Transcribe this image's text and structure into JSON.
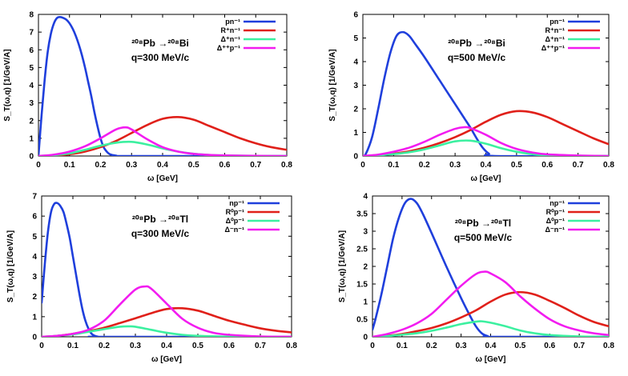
{
  "colors": {
    "blue": "#1f3fdc",
    "red": "#e0201a",
    "green": "#3cf0a0",
    "magenta": "#f21cf0"
  },
  "chart_data": [
    {
      "type": "line",
      "xlabel": "ω [GeV]",
      "ylabel": "S_T(ω,q) [1/GeV/A]",
      "xlim": [
        0,
        0.8
      ],
      "ylim": [
        0,
        8
      ],
      "xticks": [
        "0",
        "0.1",
        "0.2",
        "0.3",
        "0.4",
        "0.5",
        "0.6",
        "0.7",
        "0.8"
      ],
      "yticks": [
        "0",
        "1",
        "2",
        "3",
        "4",
        "5",
        "6",
        "7",
        "8"
      ],
      "annotation": [
        "²⁰⁸Pb →²⁰⁸Bi",
        "q=300 MeV/c"
      ],
      "legend_position": "top-right",
      "series": [
        {
          "name": "pn⁻¹",
          "color": "#1f3fdc",
          "x": [
            0,
            0.01,
            0.02,
            0.03,
            0.04,
            0.05,
            0.06,
            0.07,
            0.08,
            0.09,
            0.1,
            0.11,
            0.12,
            0.13,
            0.14,
            0.15,
            0.16,
            0.17,
            0.18,
            0.19,
            0.2,
            0.21,
            0.22,
            0.23,
            0.25,
            0.3,
            0.8
          ],
          "y": [
            0,
            2.3,
            4.3,
            5.9,
            6.9,
            7.5,
            7.8,
            7.85,
            7.8,
            7.7,
            7.5,
            7.2,
            6.8,
            6.3,
            5.7,
            5.0,
            4.2,
            3.4,
            2.5,
            1.7,
            1.0,
            0.5,
            0.25,
            0.1,
            0.02,
            0,
            0
          ]
        },
        {
          "name": "R⁺n⁻¹",
          "color": "#e0201a",
          "x": [
            0,
            0.05,
            0.1,
            0.15,
            0.2,
            0.25,
            0.3,
            0.35,
            0.4,
            0.45,
            0.5,
            0.55,
            0.6,
            0.65,
            0.7,
            0.75,
            0.8
          ],
          "y": [
            0,
            0.03,
            0.1,
            0.25,
            0.5,
            0.85,
            1.3,
            1.75,
            2.1,
            2.2,
            2.05,
            1.7,
            1.35,
            1.0,
            0.72,
            0.5,
            0.35
          ]
        },
        {
          "name": "Δ⁺n⁻¹",
          "color": "#3cf0a0",
          "x": [
            0,
            0.05,
            0.1,
            0.15,
            0.2,
            0.25,
            0.3,
            0.35,
            0.4,
            0.45,
            0.5,
            0.55,
            0.6,
            0.7,
            0.8
          ],
          "y": [
            0,
            0.05,
            0.15,
            0.35,
            0.58,
            0.75,
            0.8,
            0.65,
            0.43,
            0.25,
            0.13,
            0.06,
            0.03,
            0.01,
            0
          ]
        },
        {
          "name": "Δ⁺⁺p⁻¹",
          "color": "#f21cf0",
          "x": [
            0,
            0.05,
            0.1,
            0.15,
            0.2,
            0.25,
            0.28,
            0.3,
            0.35,
            0.4,
            0.45,
            0.5,
            0.55,
            0.6,
            0.7,
            0.8
          ],
          "y": [
            0,
            0.08,
            0.25,
            0.55,
            1.0,
            1.5,
            1.62,
            1.5,
            0.95,
            0.5,
            0.25,
            0.12,
            0.06,
            0.03,
            0.01,
            0
          ]
        }
      ]
    },
    {
      "type": "line",
      "xlabel": "ω [GeV]",
      "ylabel": "S_T(ω,q) [1/GeV/A]",
      "xlim": [
        0,
        0.8
      ],
      "ylim": [
        0,
        6
      ],
      "xticks": [
        "0",
        "0.1",
        "0.2",
        "0.3",
        "0.4",
        "0.5",
        "0.6",
        "0.7",
        "0.8"
      ],
      "yticks": [
        "0",
        "1",
        "2",
        "3",
        "4",
        "5",
        "6"
      ],
      "annotation": [
        "²⁰⁸Pb →²⁰⁸Bi",
        "q=500 MeV/c"
      ],
      "legend_position": "top-right",
      "series": [
        {
          "name": "pn⁻¹",
          "color": "#1f3fdc",
          "x": [
            0,
            0.01,
            0.03,
            0.05,
            0.07,
            0.09,
            0.11,
            0.13,
            0.15,
            0.17,
            0.2,
            0.25,
            0.3,
            0.33,
            0.35,
            0.37,
            0.39,
            0.41,
            0.43,
            0.8
          ],
          "y": [
            0,
            0.1,
            0.8,
            2.0,
            3.3,
            4.4,
            5.1,
            5.25,
            5.1,
            4.75,
            4.2,
            3.2,
            2.2,
            1.6,
            1.2,
            0.75,
            0.35,
            0.1,
            0,
            0
          ]
        },
        {
          "name": "R⁺n⁻¹",
          "color": "#e0201a",
          "x": [
            0,
            0.05,
            0.1,
            0.15,
            0.2,
            0.25,
            0.3,
            0.35,
            0.4,
            0.45,
            0.5,
            0.55,
            0.6,
            0.65,
            0.7,
            0.75,
            0.8
          ],
          "y": [
            0,
            0.03,
            0.1,
            0.2,
            0.35,
            0.55,
            0.8,
            1.1,
            1.45,
            1.75,
            1.9,
            1.85,
            1.65,
            1.35,
            1.05,
            0.75,
            0.5
          ]
        },
        {
          "name": "Δ⁺n⁻¹",
          "color": "#3cf0a0",
          "x": [
            0,
            0.05,
            0.1,
            0.15,
            0.2,
            0.25,
            0.3,
            0.35,
            0.4,
            0.45,
            0.5,
            0.55,
            0.6,
            0.7,
            0.8
          ],
          "y": [
            0,
            0.03,
            0.08,
            0.16,
            0.28,
            0.45,
            0.62,
            0.65,
            0.52,
            0.33,
            0.18,
            0.08,
            0.03,
            0.01,
            0
          ]
        },
        {
          "name": "Δ⁺⁺p⁻¹",
          "color": "#f21cf0",
          "x": [
            0,
            0.05,
            0.1,
            0.15,
            0.2,
            0.25,
            0.3,
            0.33,
            0.35,
            0.4,
            0.45,
            0.5,
            0.55,
            0.6,
            0.7,
            0.8
          ],
          "y": [
            0,
            0.06,
            0.18,
            0.35,
            0.6,
            0.9,
            1.15,
            1.22,
            1.18,
            0.9,
            0.55,
            0.3,
            0.15,
            0.07,
            0.02,
            0
          ]
        }
      ]
    },
    {
      "type": "line",
      "xlabel": "ω [GeV]",
      "ylabel": "S_T(ω,q) [1/GeV/A]",
      "xlim": [
        0,
        0.8
      ],
      "ylim": [
        0,
        7
      ],
      "xticks": [
        "0",
        "0.1",
        "0.2",
        "0.3",
        "0.4",
        "0.5",
        "0.6",
        "0.7",
        "0.8"
      ],
      "yticks": [
        "0",
        "1",
        "2",
        "3",
        "4",
        "5",
        "6",
        "7"
      ],
      "annotation": [
        "²⁰⁸Pb →²⁰⁸Tl",
        "q=300 MeV/c"
      ],
      "legend_position": "top-right",
      "series": [
        {
          "name": "np⁻¹",
          "color": "#1f3fdc",
          "x": [
            0,
            0.01,
            0.02,
            0.03,
            0.04,
            0.05,
            0.06,
            0.07,
            0.08,
            0.09,
            0.1,
            0.11,
            0.12,
            0.13,
            0.14,
            0.15,
            0.16,
            0.17,
            0.18,
            0.2,
            0.8
          ],
          "y": [
            1.7,
            3.6,
            5.2,
            6.2,
            6.6,
            6.65,
            6.5,
            6.2,
            5.6,
            4.9,
            4.0,
            3.1,
            2.2,
            1.4,
            0.8,
            0.4,
            0.15,
            0.05,
            0.01,
            0,
            0
          ]
        },
        {
          "name": "R⁰p⁻¹",
          "color": "#e0201a",
          "x": [
            0,
            0.05,
            0.1,
            0.15,
            0.2,
            0.25,
            0.3,
            0.35,
            0.4,
            0.45,
            0.5,
            0.55,
            0.6,
            0.65,
            0.7,
            0.75,
            0.8
          ],
          "y": [
            0,
            0.05,
            0.15,
            0.28,
            0.45,
            0.68,
            0.92,
            1.17,
            1.38,
            1.42,
            1.3,
            1.05,
            0.8,
            0.6,
            0.42,
            0.3,
            0.22
          ]
        },
        {
          "name": "Δ⁰p⁻¹",
          "color": "#3cf0a0",
          "x": [
            0,
            0.05,
            0.1,
            0.15,
            0.2,
            0.25,
            0.28,
            0.3,
            0.35,
            0.4,
            0.45,
            0.5,
            0.6,
            0.7,
            0.8
          ],
          "y": [
            0,
            0.05,
            0.12,
            0.25,
            0.38,
            0.5,
            0.52,
            0.5,
            0.35,
            0.2,
            0.1,
            0.05,
            0.01,
            0,
            0
          ]
        },
        {
          "name": "Δ⁻n⁻¹",
          "color": "#f21cf0",
          "x": [
            0,
            0.05,
            0.1,
            0.15,
            0.2,
            0.25,
            0.3,
            0.33,
            0.35,
            0.4,
            0.45,
            0.5,
            0.55,
            0.6,
            0.7,
            0.8
          ],
          "y": [
            0,
            0.05,
            0.15,
            0.35,
            0.8,
            1.6,
            2.35,
            2.5,
            2.4,
            1.65,
            0.9,
            0.45,
            0.2,
            0.1,
            0.02,
            0
          ]
        }
      ]
    },
    {
      "type": "line",
      "xlabel": "ω [GeV]",
      "ylabel": "S_T(ω,q) [1/GeV/A]",
      "xlim": [
        0,
        0.8
      ],
      "ylim": [
        0,
        4
      ],
      "xticks": [
        "0",
        "0.1",
        "0.2",
        "0.3",
        "0.4",
        "0.5",
        "0.6",
        "0.7",
        "0.8"
      ],
      "yticks": [
        "0",
        "0.5",
        "1",
        "1.5",
        "2",
        "2.5",
        "3",
        "3.5",
        "4"
      ],
      "annotation": [
        "²⁰⁸Pb →²⁰⁸Tl",
        "q=500 MeV/c"
      ],
      "legend_position": "top-right",
      "series": [
        {
          "name": "np⁻¹",
          "color": "#1f3fdc",
          "x": [
            0,
            0.01,
            0.03,
            0.05,
            0.07,
            0.09,
            0.11,
            0.13,
            0.15,
            0.17,
            0.2,
            0.25,
            0.3,
            0.33,
            0.35,
            0.37,
            0.39,
            0.41,
            0.8
          ],
          "y": [
            0.2,
            0.5,
            1.2,
            2.0,
            2.8,
            3.4,
            3.8,
            3.92,
            3.8,
            3.5,
            2.95,
            2.0,
            1.1,
            0.6,
            0.3,
            0.1,
            0.02,
            0,
            0
          ]
        },
        {
          "name": "R⁰p⁻¹",
          "color": "#e0201a",
          "x": [
            0,
            0.05,
            0.1,
            0.15,
            0.2,
            0.25,
            0.3,
            0.35,
            0.4,
            0.45,
            0.5,
            0.55,
            0.6,
            0.65,
            0.7,
            0.75,
            0.8
          ],
          "y": [
            0,
            0.03,
            0.08,
            0.16,
            0.25,
            0.38,
            0.55,
            0.75,
            1.0,
            1.2,
            1.27,
            1.2,
            1.02,
            0.82,
            0.6,
            0.42,
            0.3
          ]
        },
        {
          "name": "Δ⁰p⁻¹",
          "color": "#3cf0a0",
          "x": [
            0,
            0.05,
            0.1,
            0.15,
            0.2,
            0.25,
            0.3,
            0.35,
            0.37,
            0.4,
            0.45,
            0.5,
            0.55,
            0.6,
            0.7,
            0.8
          ],
          "y": [
            0,
            0.02,
            0.06,
            0.1,
            0.17,
            0.26,
            0.36,
            0.43,
            0.44,
            0.4,
            0.3,
            0.18,
            0.1,
            0.05,
            0.01,
            0
          ]
        },
        {
          "name": "Δ⁻n⁻¹",
          "color": "#f21cf0",
          "x": [
            0,
            0.05,
            0.1,
            0.15,
            0.2,
            0.25,
            0.3,
            0.35,
            0.38,
            0.4,
            0.45,
            0.5,
            0.55,
            0.6,
            0.65,
            0.7,
            0.75,
            0.8
          ],
          "y": [
            0,
            0.08,
            0.2,
            0.38,
            0.65,
            1.05,
            1.45,
            1.78,
            1.85,
            1.8,
            1.55,
            1.15,
            0.8,
            0.5,
            0.3,
            0.18,
            0.1,
            0.05
          ]
        }
      ]
    }
  ]
}
